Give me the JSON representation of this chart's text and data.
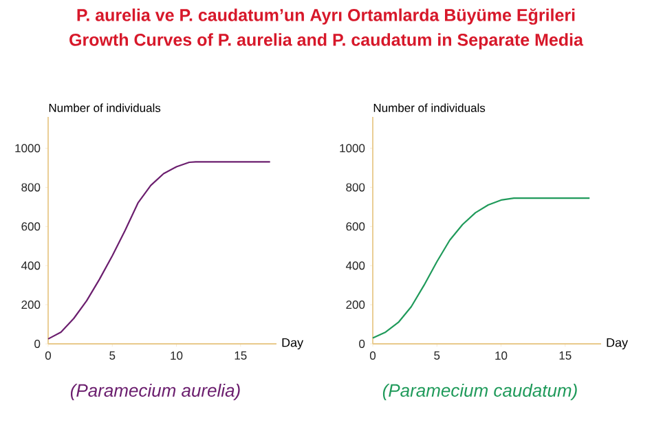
{
  "chart_data": [
    {
      "type": "line",
      "title": "P. aurelia ve P. caudatum’un Ayrı Ortamlarda Büyüme Eğrileri",
      "subtitle": "Growth Curves of P. aurelia and P. caudatum in Separate Media",
      "xlabel": "Day",
      "ylabel": "Number of individuals",
      "annotations": [
        "(Paramecium aurelia)"
      ],
      "x": [
        0,
        1,
        2,
        3,
        4,
        5,
        6,
        7,
        8,
        9,
        10,
        11,
        11.5,
        17.3
      ],
      "series": [
        {
          "color": "#6b1e6e",
          "values": [
            25,
            60,
            130,
            220,
            330,
            450,
            580,
            720,
            810,
            870,
            905,
            928,
            930,
            930
          ]
        }
      ],
      "xlim": [
        0,
        17.8
      ],
      "ylim": [
        0,
        1160
      ],
      "xticks": [
        0,
        5,
        10,
        15
      ],
      "yticks": [
        0,
        200,
        400,
        600,
        800,
        1000
      ],
      "grid": false,
      "marker": "none"
    },
    {
      "type": "line",
      "xlabel": "Day",
      "ylabel": "Number of individuals",
      "annotations": [
        "(Paramecium caudatum)"
      ],
      "x": [
        0,
        1,
        2,
        3,
        4,
        5,
        6,
        7,
        8,
        9,
        10,
        11,
        16.9
      ],
      "series": [
        {
          "color": "#1f9a5a",
          "values": [
            30,
            60,
            110,
            190,
            300,
            420,
            530,
            610,
            670,
            710,
            735,
            745,
            745
          ]
        }
      ],
      "xlim": [
        0,
        17.8
      ],
      "ylim": [
        0,
        1160
      ],
      "xticks": [
        0,
        5,
        10,
        15
      ],
      "yticks": [
        0,
        200,
        400,
        600,
        800,
        1000
      ],
      "grid": false,
      "marker": "none"
    }
  ]
}
